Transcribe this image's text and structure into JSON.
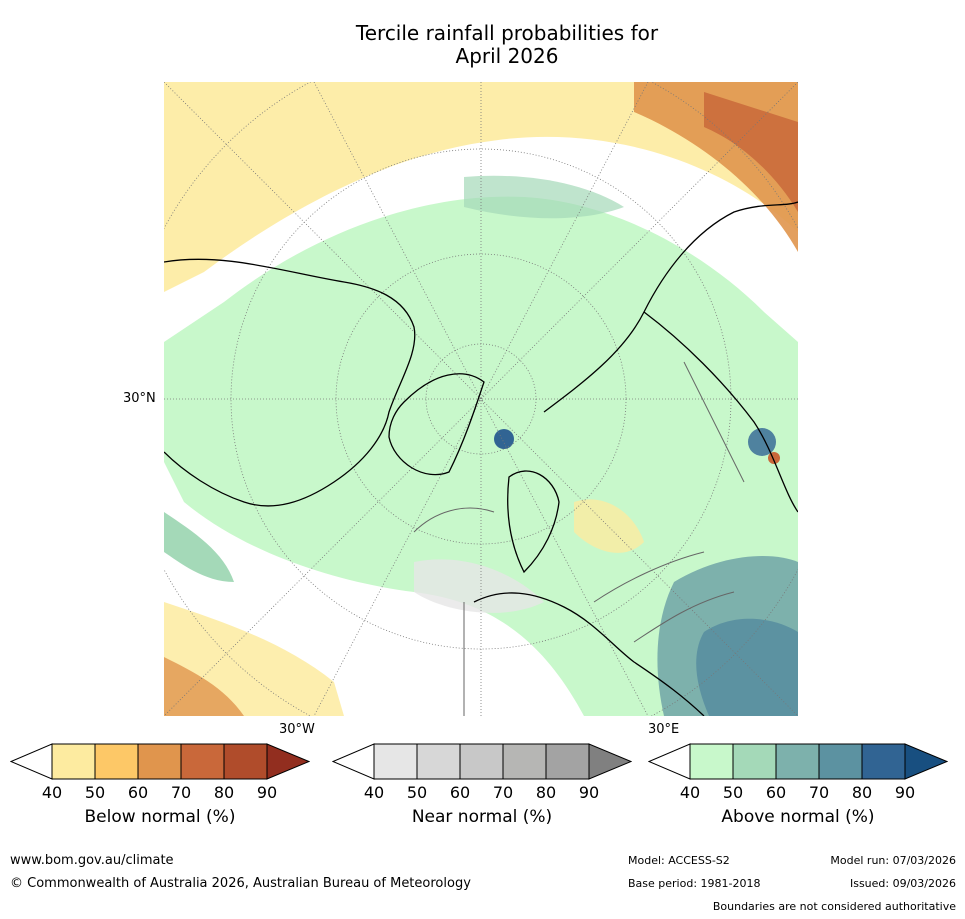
{
  "title_line1": "Tercile rainfall probabilities for",
  "title_line2": "April 2026",
  "map_labels": {
    "lat": "30°N",
    "lon_west": "30°W",
    "lon_east": "30°E"
  },
  "colorbars": [
    {
      "label": "Below normal (%)",
      "ticks": [
        "40",
        "50",
        "60",
        "70",
        "80",
        "90"
      ],
      "colors": [
        "#ffffff",
        "#fdeba0",
        "#fdc867",
        "#e0954d",
        "#c9683a",
        "#b04c2b",
        "#922e1f"
      ]
    },
    {
      "label": "Near normal (%)",
      "ticks": [
        "40",
        "50",
        "60",
        "70",
        "80",
        "90"
      ],
      "colors": [
        "#ffffff",
        "#e6e6e6",
        "#d7d7d7",
        "#c8c8c8",
        "#b6b6b4",
        "#a3a3a3",
        "#808080"
      ]
    },
    {
      "label": "Above normal (%)",
      "ticks": [
        "40",
        "50",
        "60",
        "70",
        "80",
        "90"
      ],
      "colors": [
        "#ffffff",
        "#c8f8cb",
        "#a4d9b8",
        "#7db1ac",
        "#5c92a1",
        "#316493",
        "#184f80"
      ]
    }
  ],
  "footer": {
    "website": "www.bom.gov.au/climate",
    "copyright": "© Commonwealth of Australia 2026, Australian Bureau of Meteorology",
    "model": "Model: ACCESS-S2",
    "model_run": "Model run: 07/03/2026",
    "base_period": "Base period: 1981-2018",
    "issued": "Issued: 09/03/2026",
    "disclaimer": "Boundaries are not considered authoritative"
  }
}
